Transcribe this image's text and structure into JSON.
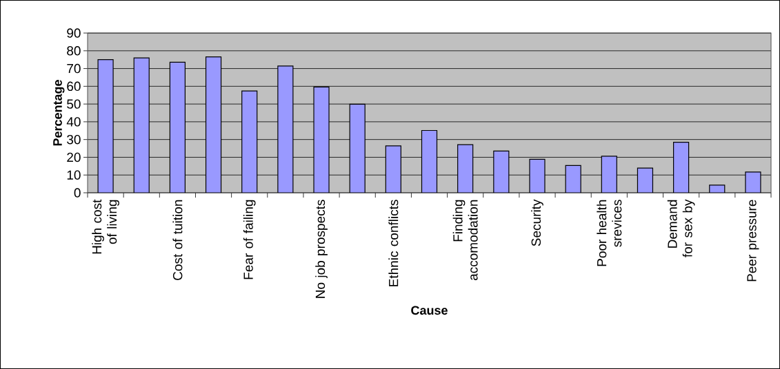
{
  "chart_data": {
    "type": "bar",
    "xlabel": "Cause",
    "ylabel": "Percentage",
    "categories": [
      "High cost of living",
      null,
      "Cost of tuition",
      null,
      "Fear of failing",
      null,
      "No job prospects",
      null,
      "Ethnic conflicts",
      null,
      "Finding accomodation",
      null,
      "Security",
      null,
      "Poor health srevices",
      null,
      "Demand for sex by",
      null,
      "Peer pressure"
    ],
    "values": [
      75,
      76,
      73.6,
      76.6,
      57.4,
      71.4,
      59.6,
      49.9,
      26.4,
      35.1,
      27.1,
      23.5,
      18.9,
      15.4,
      20.6,
      13.9,
      28.5,
      4.3,
      11.7
    ],
    "color": "#9999ff",
    "ylim": [
      0,
      90
    ],
    "yticks": [
      0,
      10,
      20,
      30,
      40,
      50,
      60,
      70,
      80,
      90
    ],
    "grid": "y"
  }
}
